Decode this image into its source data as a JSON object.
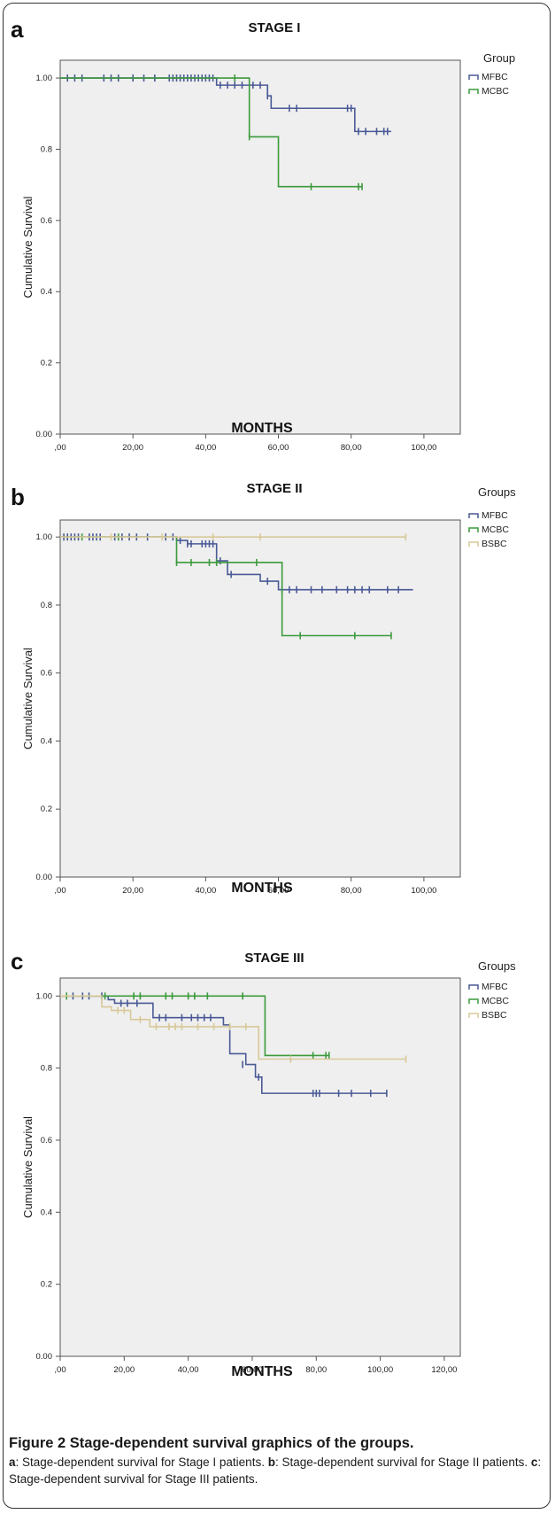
{
  "figure": {
    "caption_title": "Figure 2 Stage-dependent survival graphics of the groups.",
    "caption_parts": [
      {
        "letter": "a",
        "text": ": Stage-dependent survival for Stage I patients. "
      },
      {
        "letter": "b",
        "text": ": Stage-dependent survival for Stage II patients. "
      },
      {
        "letter": "c",
        "text": ": Stage-dependent survival for Stage III patients."
      }
    ]
  },
  "series_colors": {
    "MFBC": "#4a5a96",
    "MCBC": "#3c9a3c",
    "BSBC": "#d8c898"
  },
  "chart_data": [
    {
      "panel_label": "a",
      "type": "line",
      "title": "STAGE I",
      "xlabel": "MONTHS",
      "ylabel": "Cumulative Survival",
      "xlim": [
        0,
        110
      ],
      "ylim": [
        0,
        1.05
      ],
      "xticks": [
        0,
        20,
        40,
        60,
        80,
        100
      ],
      "xtick_labels": [
        ",00",
        "20,00",
        "40,00",
        "60,00",
        "80,00",
        "100,00"
      ],
      "yticks": [
        0,
        0.2,
        0.4,
        0.6,
        0.8,
        1.0
      ],
      "ytick_labels": [
        "0.00",
        "0.2",
        "0.4",
        "0.6",
        "0.8",
        "1.00"
      ],
      "legend_title": "Group",
      "legend_position": "right",
      "series": [
        {
          "name": "MFBC",
          "steps": [
            [
              0,
              1.0
            ],
            [
              43,
              0.98
            ],
            [
              57,
              0.95
            ],
            [
              58,
              0.915
            ],
            [
              81,
              0.85
            ],
            [
              91,
              0.85
            ]
          ],
          "censors": [
            [
              2,
              1.0
            ],
            [
              4,
              1.0
            ],
            [
              6,
              1.0
            ],
            [
              12,
              1.0
            ],
            [
              14,
              1.0
            ],
            [
              16,
              1.0
            ],
            [
              20,
              1.0
            ],
            [
              23,
              1.0
            ],
            [
              26,
              1.0
            ],
            [
              30,
              1.0
            ],
            [
              31,
              1.0
            ],
            [
              32,
              1.0
            ],
            [
              33,
              1.0
            ],
            [
              34,
              1.0
            ],
            [
              35,
              1.0
            ],
            [
              36,
              1.0
            ],
            [
              37,
              1.0
            ],
            [
              38,
              1.0
            ],
            [
              39,
              1.0
            ],
            [
              40,
              1.0
            ],
            [
              41,
              1.0
            ],
            [
              42,
              1.0
            ],
            [
              44,
              0.98
            ],
            [
              46,
              0.98
            ],
            [
              48,
              0.98
            ],
            [
              50,
              0.98
            ],
            [
              53,
              0.98
            ],
            [
              55,
              0.98
            ],
            [
              57,
              0.95
            ],
            [
              63,
              0.915
            ],
            [
              65,
              0.915
            ],
            [
              79,
              0.915
            ],
            [
              80,
              0.915
            ],
            [
              82,
              0.85
            ],
            [
              84,
              0.85
            ],
            [
              87,
              0.85
            ],
            [
              89,
              0.85
            ],
            [
              90,
              0.85
            ]
          ]
        },
        {
          "name": "MCBC",
          "steps": [
            [
              0,
              1.0
            ],
            [
              52,
              0.835
            ],
            [
              60,
              0.695
            ],
            [
              83,
              0.695
            ]
          ],
          "censors": [
            [
              48,
              1.0
            ],
            [
              52,
              0.835
            ],
            [
              69,
              0.695
            ],
            [
              82,
              0.695
            ],
            [
              83,
              0.695
            ]
          ]
        }
      ]
    },
    {
      "panel_label": "b",
      "type": "line",
      "title": "STAGE II",
      "xlabel": "MONTHS",
      "ylabel": "Cumulative Survival",
      "xlim": [
        0,
        110
      ],
      "ylim": [
        0,
        1.05
      ],
      "xticks": [
        0,
        20,
        40,
        60,
        80,
        100
      ],
      "xtick_labels": [
        ",00",
        "20,00",
        "40,00",
        "60,00",
        "80,00",
        "100,00"
      ],
      "yticks": [
        0,
        0.2,
        0.4,
        0.6,
        0.8,
        1.0
      ],
      "ytick_labels": [
        "0.00",
        "0.2",
        "0.4",
        "0.6",
        "0.8",
        "1.00"
      ],
      "legend_title": "Groups",
      "legend_position": "right",
      "series": [
        {
          "name": "MFBC",
          "steps": [
            [
              0,
              1.0
            ],
            [
              32,
              0.99
            ],
            [
              35,
              0.98
            ],
            [
              43,
              0.93
            ],
            [
              46,
              0.89
            ],
            [
              55,
              0.87
            ],
            [
              60,
              0.845
            ],
            [
              97,
              0.845
            ]
          ],
          "censors": [
            [
              1,
              1.0
            ],
            [
              2,
              1.0
            ],
            [
              3,
              1.0
            ],
            [
              4,
              1.0
            ],
            [
              5,
              1.0
            ],
            [
              8,
              1.0
            ],
            [
              9,
              1.0
            ],
            [
              10,
              1.0
            ],
            [
              11,
              1.0
            ],
            [
              15,
              1.0
            ],
            [
              17,
              1.0
            ],
            [
              19,
              1.0
            ],
            [
              21,
              1.0
            ],
            [
              24,
              1.0
            ],
            [
              29,
              1.0
            ],
            [
              31,
              1.0
            ],
            [
              33,
              0.99
            ],
            [
              35,
              0.98
            ],
            [
              36,
              0.98
            ],
            [
              39,
              0.98
            ],
            [
              40,
              0.98
            ],
            [
              41,
              0.98
            ],
            [
              42,
              0.98
            ],
            [
              44,
              0.93
            ],
            [
              47,
              0.89
            ],
            [
              57,
              0.87
            ],
            [
              61,
              0.845
            ],
            [
              63,
              0.845
            ],
            [
              65,
              0.845
            ],
            [
              69,
              0.845
            ],
            [
              72,
              0.845
            ],
            [
              76,
              0.845
            ],
            [
              79,
              0.845
            ],
            [
              81,
              0.845
            ],
            [
              83,
              0.845
            ],
            [
              85,
              0.845
            ],
            [
              90,
              0.845
            ],
            [
              93,
              0.845
            ]
          ]
        },
        {
          "name": "MCBC",
          "steps": [
            [
              0,
              1.0
            ],
            [
              32,
              0.925
            ],
            [
              61,
              0.71
            ],
            [
              91,
              0.71
            ]
          ],
          "censors": [
            [
              6,
              1.0
            ],
            [
              16,
              1.0
            ],
            [
              32,
              0.925
            ],
            [
              36,
              0.925
            ],
            [
              41,
              0.925
            ],
            [
              43,
              0.925
            ],
            [
              54,
              0.925
            ],
            [
              66,
              0.71
            ],
            [
              81,
              0.71
            ],
            [
              91,
              0.71
            ]
          ]
        },
        {
          "name": "BSBC",
          "steps": [
            [
              0,
              1.0
            ],
            [
              95,
              1.0
            ]
          ],
          "censors": [
            [
              14,
              1.0
            ],
            [
              28,
              1.0
            ],
            [
              42,
              1.0
            ],
            [
              55,
              1.0
            ],
            [
              95,
              1.0
            ]
          ]
        }
      ]
    },
    {
      "panel_label": "c",
      "type": "line",
      "title": "STAGE III",
      "xlabel": "MONTHS",
      "ylabel": "Cumulative Survival",
      "xlim": [
        0,
        125
      ],
      "ylim": [
        0,
        1.05
      ],
      "xticks": [
        0,
        20,
        40,
        60,
        80,
        100,
        120
      ],
      "xtick_labels": [
        ",00",
        "20,00",
        "40,00",
        "60,00",
        "80,00",
        "100,00",
        "120,00"
      ],
      "yticks": [
        0,
        0.2,
        0.4,
        0.6,
        0.8,
        1.0
      ],
      "ytick_labels": [
        "0.00",
        "0.2",
        "0.4",
        "0.6",
        "0.8",
        "1.00"
      ],
      "legend_title": "Groups",
      "legend_position": "right",
      "series": [
        {
          "name": "MFBC",
          "steps": [
            [
              0,
              1.0
            ],
            [
              15,
              0.99
            ],
            [
              17,
              0.98
            ],
            [
              29,
              0.94
            ],
            [
              51,
              0.92
            ],
            [
              53,
              0.84
            ],
            [
              58,
              0.81
            ],
            [
              61,
              0.775
            ],
            [
              63,
              0.73
            ],
            [
              102,
              0.73
            ]
          ],
          "censors": [
            [
              4,
              1.0
            ],
            [
              7,
              1.0
            ],
            [
              9,
              1.0
            ],
            [
              13,
              1.0
            ],
            [
              19,
              0.98
            ],
            [
              21,
              0.98
            ],
            [
              24,
              0.98
            ],
            [
              31,
              0.94
            ],
            [
              33,
              0.94
            ],
            [
              38,
              0.94
            ],
            [
              41,
              0.94
            ],
            [
              43,
              0.94
            ],
            [
              45,
              0.94
            ],
            [
              47,
              0.94
            ],
            [
              57,
              0.81
            ],
            [
              62,
              0.775
            ],
            [
              79,
              0.73
            ],
            [
              80,
              0.73
            ],
            [
              81,
              0.73
            ],
            [
              87,
              0.73
            ],
            [
              91,
              0.73
            ],
            [
              97,
              0.73
            ],
            [
              102,
              0.73
            ]
          ]
        },
        {
          "name": "MCBC",
          "steps": [
            [
              0,
              1.0
            ],
            [
              64,
              0.835
            ],
            [
              84,
              0.835
            ]
          ],
          "censors": [
            [
              2,
              1.0
            ],
            [
              14,
              1.0
            ],
            [
              23,
              1.0
            ],
            [
              25,
              1.0
            ],
            [
              33,
              1.0
            ],
            [
              35,
              1.0
            ],
            [
              40,
              1.0
            ],
            [
              42,
              1.0
            ],
            [
              46,
              1.0
            ],
            [
              57,
              1.0
            ],
            [
              79,
              0.835
            ],
            [
              83,
              0.835
            ],
            [
              84,
              0.835
            ]
          ]
        },
        {
          "name": "BSBC",
          "steps": [
            [
              0,
              1.0
            ],
            [
              13,
              0.97
            ],
            [
              16,
              0.96
            ],
            [
              22,
              0.935
            ],
            [
              28,
              0.915
            ],
            [
              57,
              0.915
            ],
            [
              62,
              0.825
            ],
            [
              108,
              0.825
            ]
          ],
          "censors": [
            [
              18,
              0.96
            ],
            [
              20,
              0.96
            ],
            [
              25,
              0.935
            ],
            [
              30,
              0.915
            ],
            [
              34,
              0.915
            ],
            [
              36,
              0.915
            ],
            [
              38,
              0.915
            ],
            [
              43,
              0.915
            ],
            [
              48,
              0.915
            ],
            [
              53,
              0.915
            ],
            [
              58,
              0.915
            ],
            [
              72,
              0.825
            ],
            [
              108,
              0.825
            ]
          ]
        }
      ]
    }
  ]
}
